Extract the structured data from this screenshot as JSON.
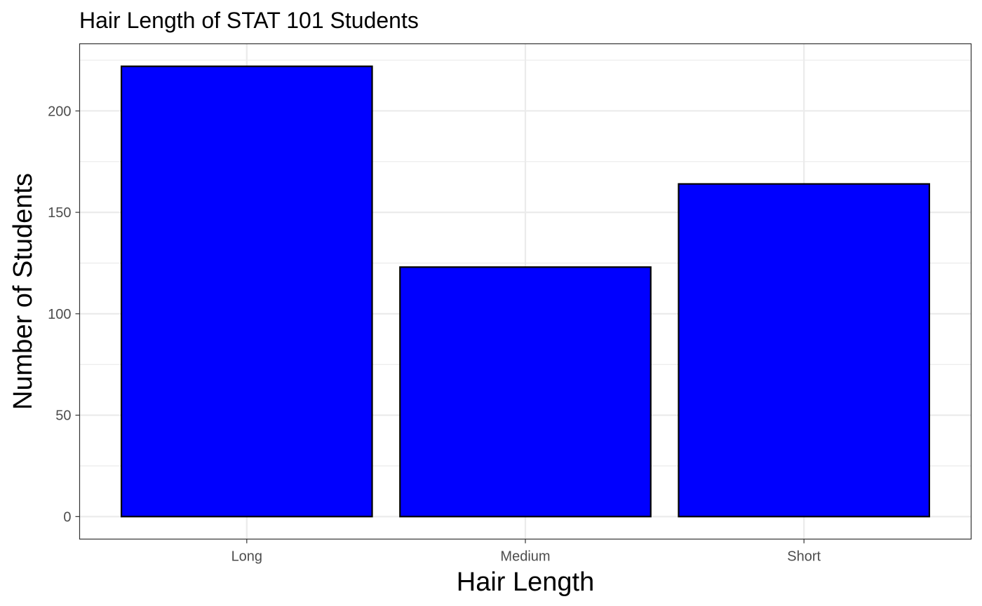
{
  "chart_data": {
    "type": "bar",
    "title": "Hair Length of STAT 101 Students",
    "xlabel": "Hair Length",
    "ylabel": "Number of Students",
    "categories": [
      "Long",
      "Medium",
      "Short"
    ],
    "values": [
      222,
      123,
      164
    ],
    "ylim": [
      -11.1,
      233.1
    ],
    "y_ticks": [
      0,
      50,
      100,
      150,
      200
    ],
    "y_tick_labels": [
      "0",
      "50",
      "100",
      "150",
      "200"
    ],
    "bar_fill": "#0000ff",
    "bar_stroke": "#000000",
    "panel_border": "#333333",
    "grid_color": "#ebebeb",
    "grid": true,
    "legend": "none"
  }
}
